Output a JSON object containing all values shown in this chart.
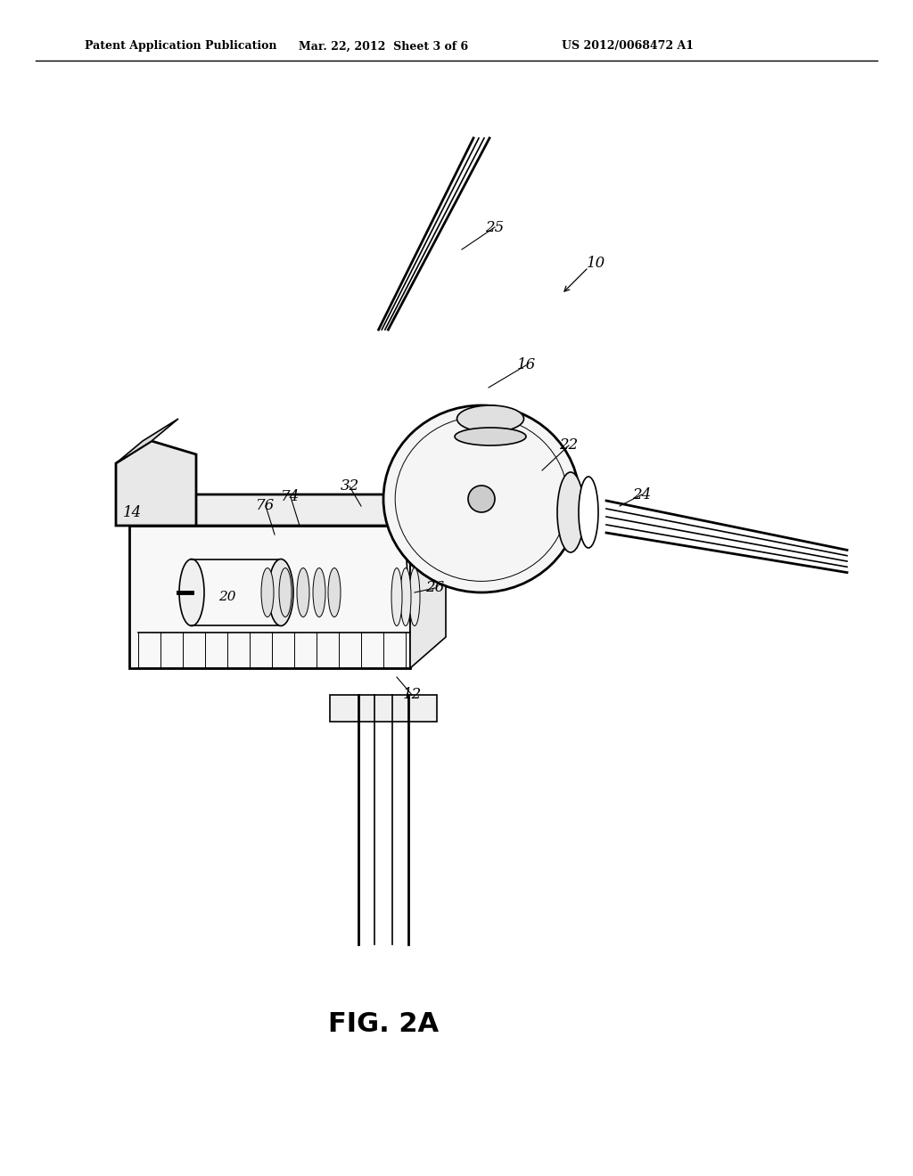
{
  "header_left": "Patent Application Publication",
  "header_center": "Mar. 22, 2012  Sheet 3 of 6",
  "header_right": "US 2012/0068472 A1",
  "bg_color": "#ffffff",
  "line_color": "#000000",
  "fig_label": "FIG. 2A",
  "lw_thick": 2.0,
  "lw_main": 1.2,
  "lw_thin": 0.7
}
